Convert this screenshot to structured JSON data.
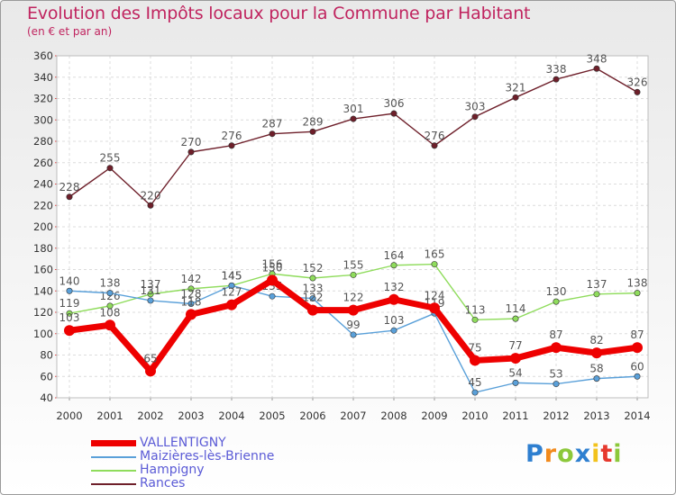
{
  "chart_data": {
    "type": "line",
    "title": "Evolution des Impôts locaux pour la Commune par Habitant",
    "subtitle": "(en € et par an)",
    "xlabel": "",
    "ylabel": "",
    "x": [
      "2000",
      "2001",
      "2002",
      "2003",
      "2004",
      "2005",
      "2006",
      "2007",
      "2008",
      "2009",
      "2010",
      "2011",
      "2012",
      "2013",
      "2014"
    ],
    "ylim": [
      40,
      360
    ],
    "ytick_step": 20,
    "yticks": [
      "40",
      "60",
      "80",
      "100",
      "120",
      "140",
      "160",
      "180",
      "200",
      "220",
      "240",
      "260",
      "280",
      "300",
      "320",
      "340",
      "360"
    ],
    "grid": true,
    "legend_position": "bottom-left",
    "series": [
      {
        "name": "Rances",
        "color": "#6e1f2a",
        "values": [
          228,
          255,
          220,
          270,
          276,
          287,
          289,
          301,
          306,
          276,
          303,
          321,
          338,
          348,
          326
        ],
        "labels": [
          "228",
          "255",
          "220",
          "270",
          "276",
          "287",
          "289",
          "301",
          "306",
          "276",
          "303",
          "321",
          "338",
          "348",
          "326"
        ]
      },
      {
        "name": "Hampigny",
        "color": "#8fdc5c",
        "values": [
          119,
          126,
          137,
          142,
          145,
          156,
          152,
          155,
          164,
          165,
          113,
          114,
          130,
          137,
          138
        ],
        "labels": [
          "119",
          "126",
          "137",
          "142",
          "145",
          "156",
          "152",
          "155",
          "164",
          "165",
          "113",
          "114",
          "130",
          "137",
          "138"
        ]
      },
      {
        "name": "Maizières-lès-Brienne",
        "color": "#5aa0d9",
        "values": [
          140,
          138,
          131,
          128,
          145,
          135,
          133,
          99,
          103,
          119,
          45,
          54,
          53,
          58,
          60
        ],
        "labels": [
          "140",
          "138",
          "131",
          "128",
          "145",
          "135",
          "133",
          "99",
          "103",
          "119",
          "45",
          "54",
          "53",
          "58",
          "60"
        ]
      },
      {
        "name": "VALLENTIGNY",
        "color": "#ee0000",
        "values": [
          103,
          108,
          65,
          118,
          127,
          150,
          122,
          122,
          132,
          124,
          75,
          77,
          87,
          82,
          87
        ],
        "labels": [
          "103",
          "108",
          "65",
          "118",
          "127",
          "150",
          "122",
          "122",
          "132",
          "124",
          "75",
          "77",
          "87",
          "82",
          "87"
        ]
      }
    ],
    "legend": [
      "VALLENTIGNY",
      "Maizières-lès-Brienne",
      "Hampigny",
      "Rances"
    ]
  },
  "legend_colors": [
    "#ee0000",
    "#5aa0d9",
    "#8fdc5c",
    "#6e1f2a"
  ],
  "logo": {
    "letters": [
      "P",
      "r",
      "o",
      "x",
      "i",
      "t",
      "i"
    ],
    "colors": [
      "#2e7fd0",
      "#f28a1c",
      "#8cc83a",
      "#2e7fd0",
      "#f2c21c",
      "#e6392e",
      "#8cc83a"
    ]
  }
}
